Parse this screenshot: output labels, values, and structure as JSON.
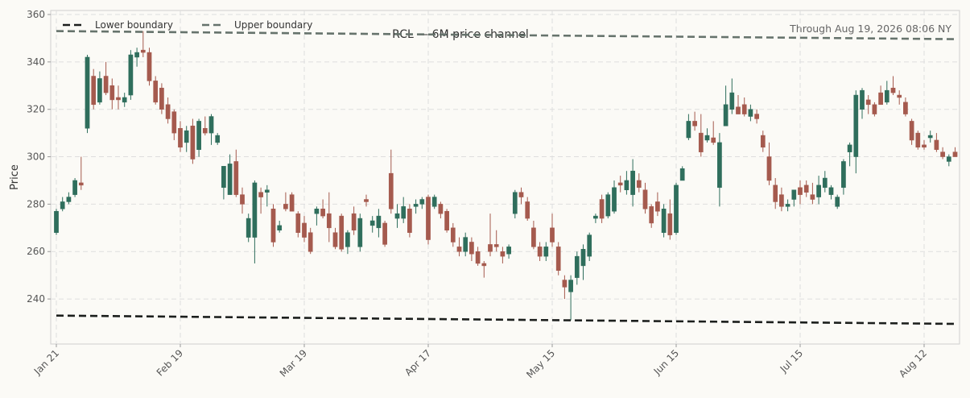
{
  "chart_data": {
    "type": "candlestick",
    "title": "RCL — 6M price channel",
    "annotation": "Through Aug 19, 2026 08:06 NY",
    "y_label": "Price",
    "ylim": [
      221,
      361.7
    ],
    "yticks": [
      240,
      260,
      280,
      300,
      320,
      340,
      360
    ],
    "grid": true,
    "up_color": "#2f6e5c",
    "down_color": "#a55a4e",
    "legend_position": "upper left",
    "categories": [
      "Jan 21",
      null,
      null,
      null,
      null,
      null,
      null,
      null,
      null,
      null,
      null,
      null,
      null,
      null,
      null,
      null,
      null,
      null,
      null,
      null,
      "Feb 19",
      null,
      null,
      null,
      null,
      null,
      null,
      null,
      null,
      null,
      null,
      null,
      null,
      null,
      null,
      null,
      null,
      null,
      null,
      null,
      "Mar 19",
      null,
      null,
      null,
      null,
      null,
      null,
      null,
      null,
      null,
      null,
      null,
      null,
      null,
      null,
      null,
      null,
      null,
      null,
      null,
      "Apr 17",
      null,
      null,
      null,
      null,
      null,
      null,
      null,
      null,
      null,
      null,
      null,
      null,
      null,
      null,
      null,
      null,
      null,
      null,
      null,
      "May 15",
      null,
      null,
      null,
      null,
      null,
      null,
      null,
      null,
      null,
      null,
      null,
      null,
      null,
      null,
      null,
      null,
      null,
      null,
      null,
      "Jun 15",
      null,
      null,
      null,
      null,
      null,
      null,
      null,
      null,
      null,
      null,
      null,
      null,
      null,
      null,
      null,
      null,
      null,
      null,
      null,
      "Jul 15",
      null,
      null,
      null,
      null,
      null,
      null,
      null,
      null,
      null,
      null,
      null,
      null,
      null,
      null,
      null,
      null,
      null,
      null,
      null,
      "Aug 12",
      null,
      null,
      null,
      null,
      null
    ],
    "open": [
      268,
      278,
      281,
      284,
      289,
      312,
      334,
      323,
      334,
      330,
      325,
      323,
      326,
      342,
      345,
      344,
      332,
      329,
      322,
      319,
      312,
      306,
      313,
      303,
      312,
      310,
      306,
      287,
      284,
      298,
      284,
      266,
      266,
      285,
      285,
      278,
      269,
      280,
      284,
      276,
      272,
      268,
      276,
      278,
      276,
      268,
      275,
      262,
      276,
      262,
      282,
      271,
      270,
      272,
      293,
      274,
      274,
      278,
      279,
      280,
      283,
      279,
      280,
      277,
      270,
      262,
      260,
      264,
      260,
      255,
      263,
      263,
      260,
      259,
      276,
      285,
      281,
      270,
      262,
      258,
      270,
      262,
      248,
      243,
      249,
      254,
      258,
      274,
      282,
      275,
      277,
      289,
      286,
      284,
      290,
      286,
      279,
      281,
      268,
      276,
      268,
      290,
      308,
      315,
      310,
      307,
      308,
      287,
      313,
      320,
      321,
      322,
      317,
      318,
      309,
      300,
      288,
      284,
      279,
      282,
      287,
      288,
      284,
      283,
      287,
      284,
      279,
      287,
      302,
      300,
      320,
      324,
      322,
      327,
      323,
      329,
      326,
      323,
      315,
      310,
      305,
      308,
      307,
      302,
      298,
      302
    ],
    "high": [
      278,
      283,
      285,
      291,
      300,
      343,
      337,
      336,
      340,
      333,
      330,
      327,
      345,
      346,
      353,
      346,
      334,
      331,
      325,
      320,
      315,
      313,
      316,
      316,
      317,
      318,
      310,
      296,
      301,
      303,
      287,
      276,
      290,
      287,
      288,
      280,
      273,
      285,
      285,
      277,
      275,
      270,
      279,
      282,
      285,
      270,
      276,
      269,
      279,
      276,
      284,
      275,
      278,
      273,
      303,
      280,
      283,
      280,
      282,
      283,
      284,
      284,
      281,
      278,
      272,
      266,
      268,
      266,
      262,
      256,
      276,
      269,
      262,
      263,
      286,
      287,
      283,
      273,
      264,
      264,
      276,
      264,
      250,
      250,
      260,
      263,
      268,
      276,
      284,
      285,
      290,
      292,
      294,
      299,
      293,
      289,
      280,
      285,
      280,
      282,
      289,
      296,
      318,
      319,
      318,
      312,
      315,
      310,
      330,
      333,
      326,
      325,
      322,
      320,
      311,
      306,
      291,
      287,
      282,
      286,
      290,
      290,
      289,
      292,
      294,
      288,
      284,
      299,
      306,
      328,
      329,
      326,
      323,
      330,
      332,
      334,
      328,
      325,
      316,
      311,
      307,
      311,
      310,
      304,
      301,
      304
    ],
    "low": [
      267,
      277,
      280,
      283,
      286,
      310,
      320,
      322,
      326,
      320,
      320,
      321,
      324,
      338,
      342,
      330,
      322,
      318,
      314,
      307,
      302,
      302,
      297,
      300,
      309,
      305,
      305,
      282,
      284,
      283,
      276,
      264,
      255,
      276,
      279,
      262,
      268,
      277,
      277,
      266,
      264,
      259,
      271,
      274,
      264,
      261,
      260,
      259,
      267,
      260,
      279,
      268,
      266,
      262,
      276,
      270,
      272,
      266,
      276,
      278,
      263,
      278,
      274,
      268,
      262,
      258,
      258,
      256,
      254,
      249,
      258,
      260,
      255,
      257,
      274,
      280,
      273,
      261,
      256,
      256,
      262,
      250,
      240,
      231,
      246,
      248,
      256,
      272,
      272,
      274,
      276,
      285,
      284,
      279,
      285,
      276,
      270,
      275,
      266,
      265,
      267,
      290,
      307,
      311,
      300,
      306,
      305,
      279,
      313,
      318,
      318,
      317,
      315,
      314,
      302,
      288,
      278,
      277,
      277,
      279,
      280,
      283,
      280,
      280,
      285,
      282,
      278,
      284,
      296,
      293,
      316,
      318,
      317,
      322,
      322,
      326,
      322,
      317,
      305,
      303,
      303,
      306,
      302,
      299,
      296,
      300
    ],
    "close": [
      277,
      281,
      283,
      290,
      288,
      342,
      322,
      333,
      327,
      324,
      324,
      325,
      343,
      344,
      344,
      332,
      323,
      320,
      316,
      310,
      304,
      311,
      299,
      315,
      310,
      317,
      309,
      296,
      297,
      284,
      280,
      274,
      289,
      283,
      286,
      264,
      271,
      278,
      277,
      268,
      266,
      260,
      278,
      275,
      270,
      262,
      261,
      268,
      269,
      274,
      281,
      273,
      275,
      263,
      278,
      276,
      279,
      268,
      280,
      282,
      265,
      283,
      276,
      269,
      264,
      260,
      266,
      259,
      255,
      254,
      260,
      262,
      258,
      262,
      285,
      283,
      274,
      262,
      258,
      262,
      264,
      252,
      245,
      248,
      258,
      261,
      267,
      275,
      274,
      284,
      287,
      288,
      290,
      294,
      287,
      278,
      272,
      277,
      278,
      267,
      288,
      295,
      315,
      313,
      302,
      309,
      306,
      306,
      322,
      327,
      318,
      318,
      320,
      316,
      304,
      290,
      281,
      279,
      280,
      286,
      284,
      285,
      282,
      288,
      291,
      287,
      283,
      298,
      305,
      326,
      328,
      322,
      318,
      322,
      328,
      327,
      325,
      318,
      307,
      304,
      304,
      309,
      303,
      300,
      300,
      300
    ],
    "lines": [
      {
        "name": "Lower boundary",
        "color": "#1c1f1d",
        "values": [
          233,
          229.5
        ]
      },
      {
        "name": "Upper boundary",
        "color": "#66736c",
        "values": [
          353,
          349.6
        ]
      }
    ]
  }
}
